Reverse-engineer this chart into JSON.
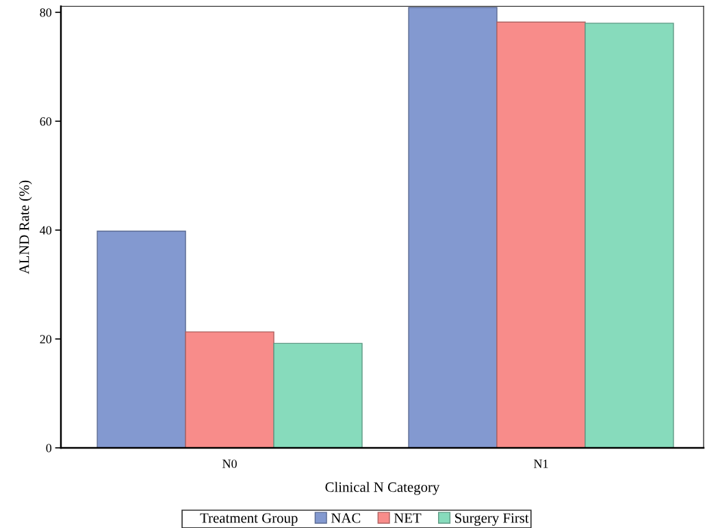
{
  "chart_data": {
    "type": "bar",
    "xlabel": "Clinical N Category",
    "ylabel": "ALND Rate (%)",
    "legend_title": "Treatment Group",
    "categories": [
      "N0",
      "N1"
    ],
    "series": [
      {
        "name": "NAC",
        "color": "#8399d0",
        "values": [
          39.8,
          80.9
        ]
      },
      {
        "name": "NET",
        "color": "#f88c8a",
        "values": [
          21.3,
          78.2
        ]
      },
      {
        "name": "Surgery First",
        "color": "#87dbbc",
        "values": [
          19.2,
          78.0
        ]
      }
    ],
    "ylim": [
      0,
      81.1
    ],
    "yticks": [
      0,
      20,
      40,
      60,
      80
    ],
    "grid": false,
    "legend": "bottom"
  }
}
